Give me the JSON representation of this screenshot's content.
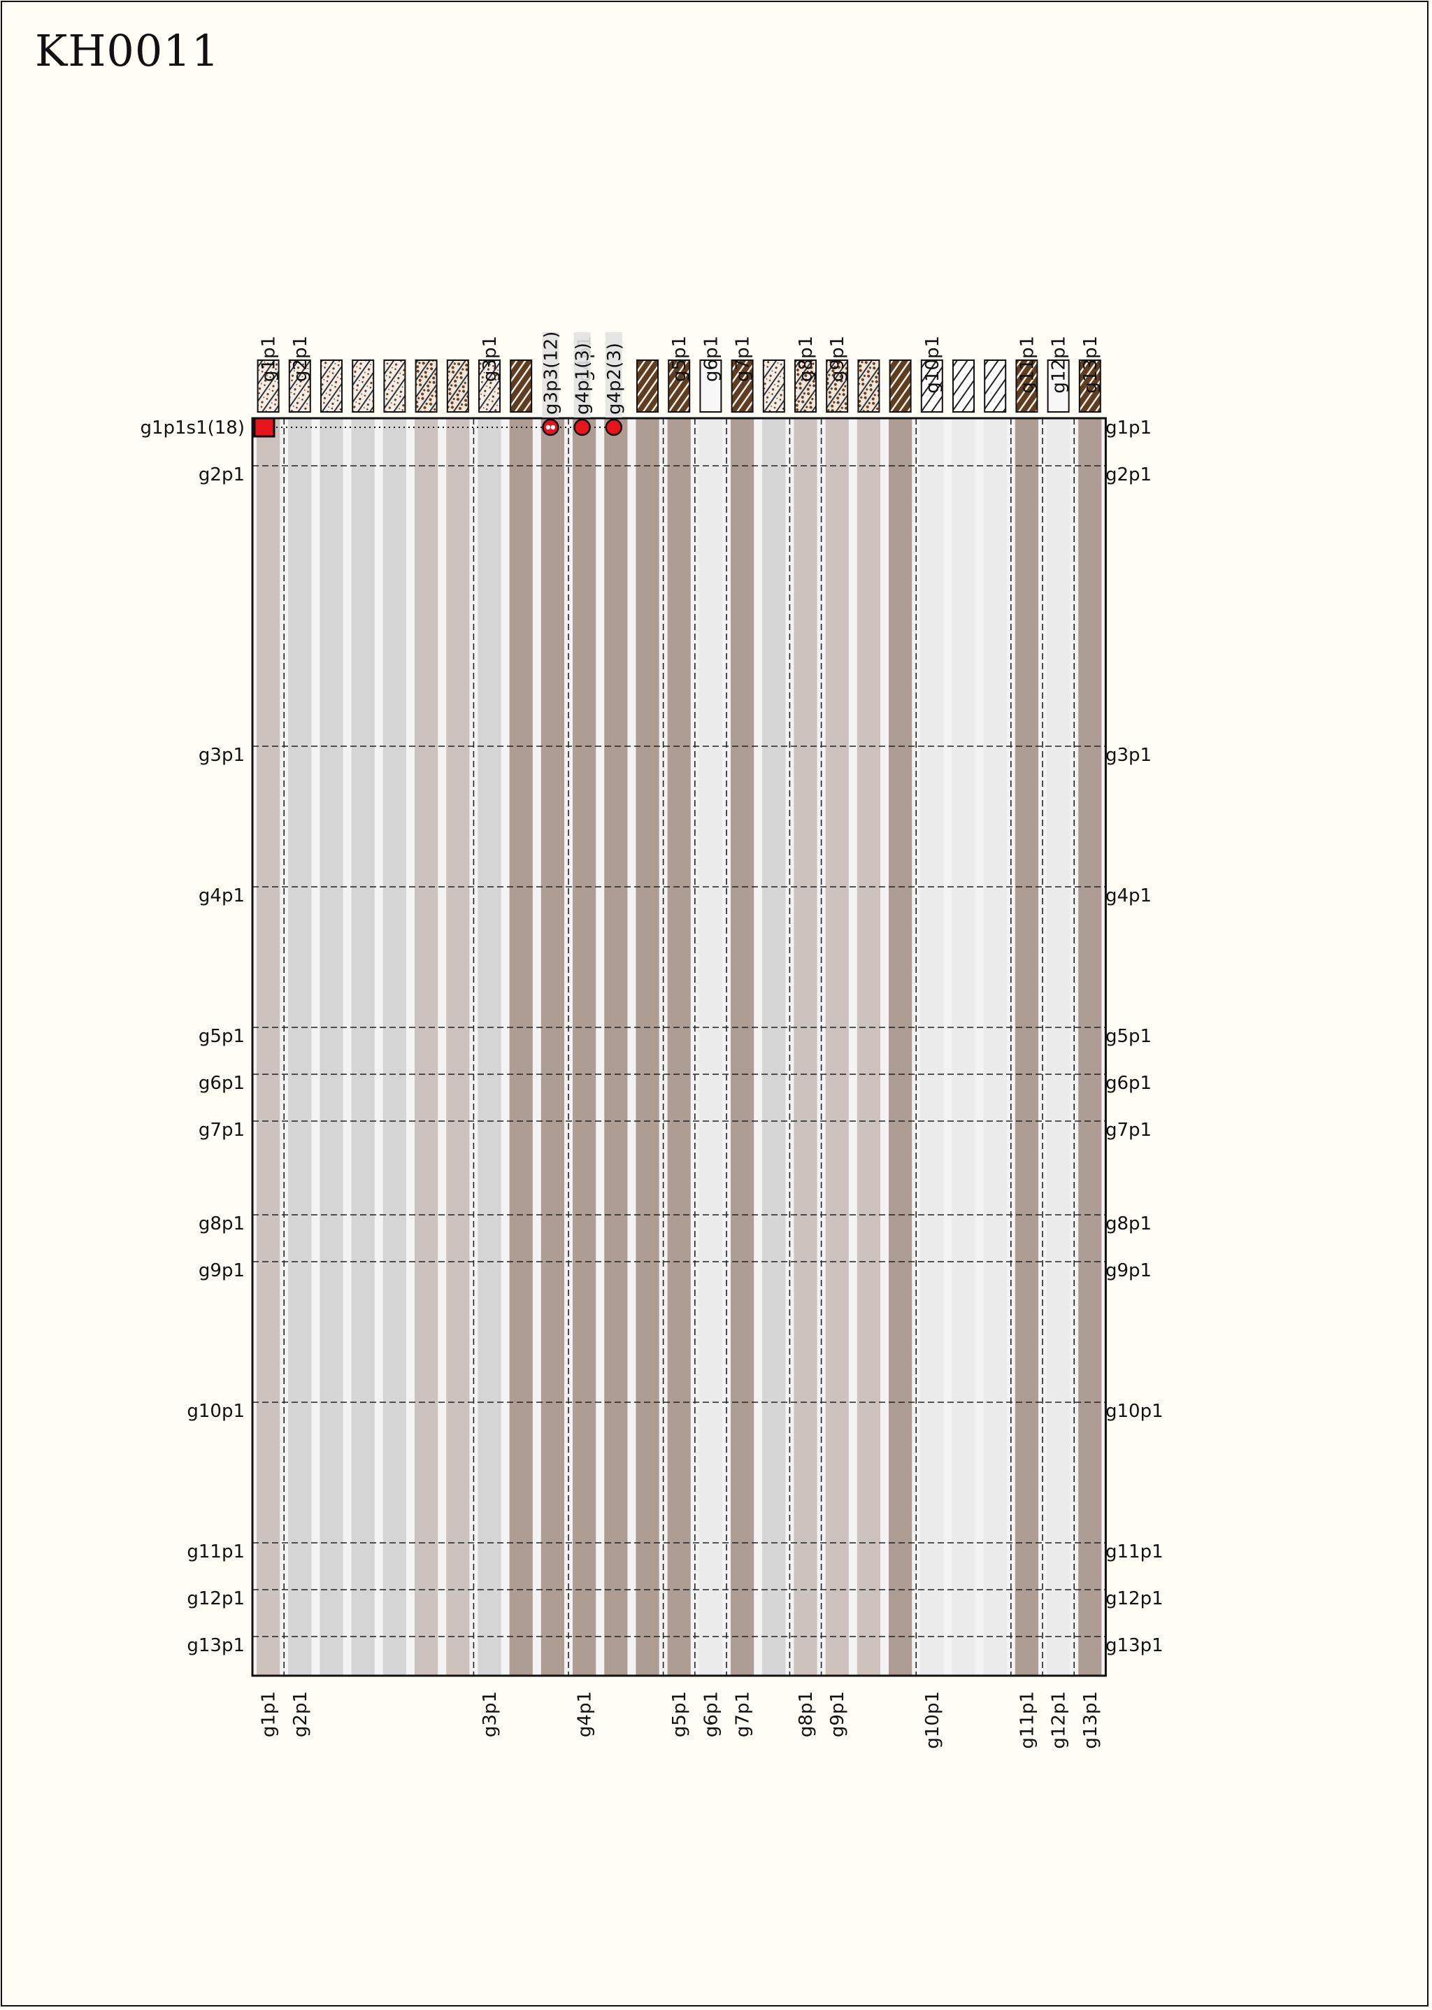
{
  "title": "KH0011",
  "columns": [
    {
      "label": "g1p1",
      "band": "#cdc2bd",
      "pattern": "speck-light"
    },
    {
      "label": "g2p1",
      "band": "#d5d5d5",
      "pattern": "speck-light"
    },
    {
      "label": "",
      "band": "#d5d5d5",
      "pattern": "speck-light"
    },
    {
      "label": "",
      "band": "#d5d5d5",
      "pattern": "speck-light"
    },
    {
      "label": "",
      "band": "#d5d5d5",
      "pattern": "speck-light"
    },
    {
      "label": "",
      "band": "#cdc2bd",
      "pattern": "speck-mid"
    },
    {
      "label": "",
      "band": "#cdc2bd",
      "pattern": "speck-mid"
    },
    {
      "label": "g3p1",
      "band": "#d5d5d5",
      "pattern": "speck-light"
    },
    {
      "label": "",
      "band": "#ad9d92",
      "pattern": "dark"
    },
    {
      "label": "",
      "band": "#ad9d92",
      "pattern": "none"
    },
    {
      "label": "g4p1",
      "band": "#ad9d92",
      "pattern": "none"
    },
    {
      "label": "",
      "band": "#ad9d92",
      "pattern": "none"
    },
    {
      "label": "",
      "band": "#ad9d92",
      "pattern": "dark"
    },
    {
      "label": "g5p1",
      "band": "#ad9d92",
      "pattern": "dark"
    },
    {
      "label": "g6p1",
      "band": "#ebebeb",
      "pattern": "white"
    },
    {
      "label": "g7p1",
      "band": "#ad9d92",
      "pattern": "dark"
    },
    {
      "label": "",
      "band": "#d5d5d5",
      "pattern": "speck-light"
    },
    {
      "label": "g8p1",
      "band": "#cdc2bd",
      "pattern": "speck-mid"
    },
    {
      "label": "g9p1",
      "band": "#cdc2bd",
      "pattern": "speck-mid"
    },
    {
      "label": "",
      "band": "#cdc2bd",
      "pattern": "speck-mid"
    },
    {
      "label": "",
      "band": "#ad9d92",
      "pattern": "dark"
    },
    {
      "label": "g10p1",
      "band": "#ebebeb",
      "pattern": "hatch"
    },
    {
      "label": "",
      "band": "#ebebeb",
      "pattern": "hatch"
    },
    {
      "label": "",
      "band": "#ebebeb",
      "pattern": "hatch"
    },
    {
      "label": "g11p1",
      "band": "#ad9d92",
      "pattern": "dark"
    },
    {
      "label": "g12p1",
      "band": "#ebebeb",
      "pattern": "white"
    },
    {
      "label": "g13p1",
      "band": "#ad9d92",
      "pattern": "dark"
    }
  ],
  "rows": [
    {
      "label": "g1p1",
      "pos": 0
    },
    {
      "label": "g2p1",
      "pos": 1
    },
    {
      "label": "g3p1",
      "pos": 7
    },
    {
      "label": "g4p1",
      "pos": 10
    },
    {
      "label": "g5p1",
      "pos": 13
    },
    {
      "label": "g6p1",
      "pos": 14
    },
    {
      "label": "g7p1",
      "pos": 15
    },
    {
      "label": "g8p1",
      "pos": 17
    },
    {
      "label": "g9p1",
      "pos": 18
    },
    {
      "label": "g10p1",
      "pos": 21
    },
    {
      "label": "g11p1",
      "pos": 24
    },
    {
      "label": "g12p1",
      "pos": 25
    },
    {
      "label": "g13p1",
      "pos": 26
    }
  ],
  "top_row": {
    "label": "g1p1s1(18)",
    "markers": [
      {
        "column": 9,
        "label": "g3p3(12)",
        "style": "open"
      },
      {
        "column": 10,
        "label": "g4p1(3)",
        "style": "filled"
      },
      {
        "column": 11,
        "label": "g4p2(3)",
        "style": "filled"
      }
    ]
  },
  "colors": {
    "background": "#fefef6",
    "marker": "#e8141b",
    "dark_brown": "#5e3d20",
    "grid_line": "#222222"
  }
}
